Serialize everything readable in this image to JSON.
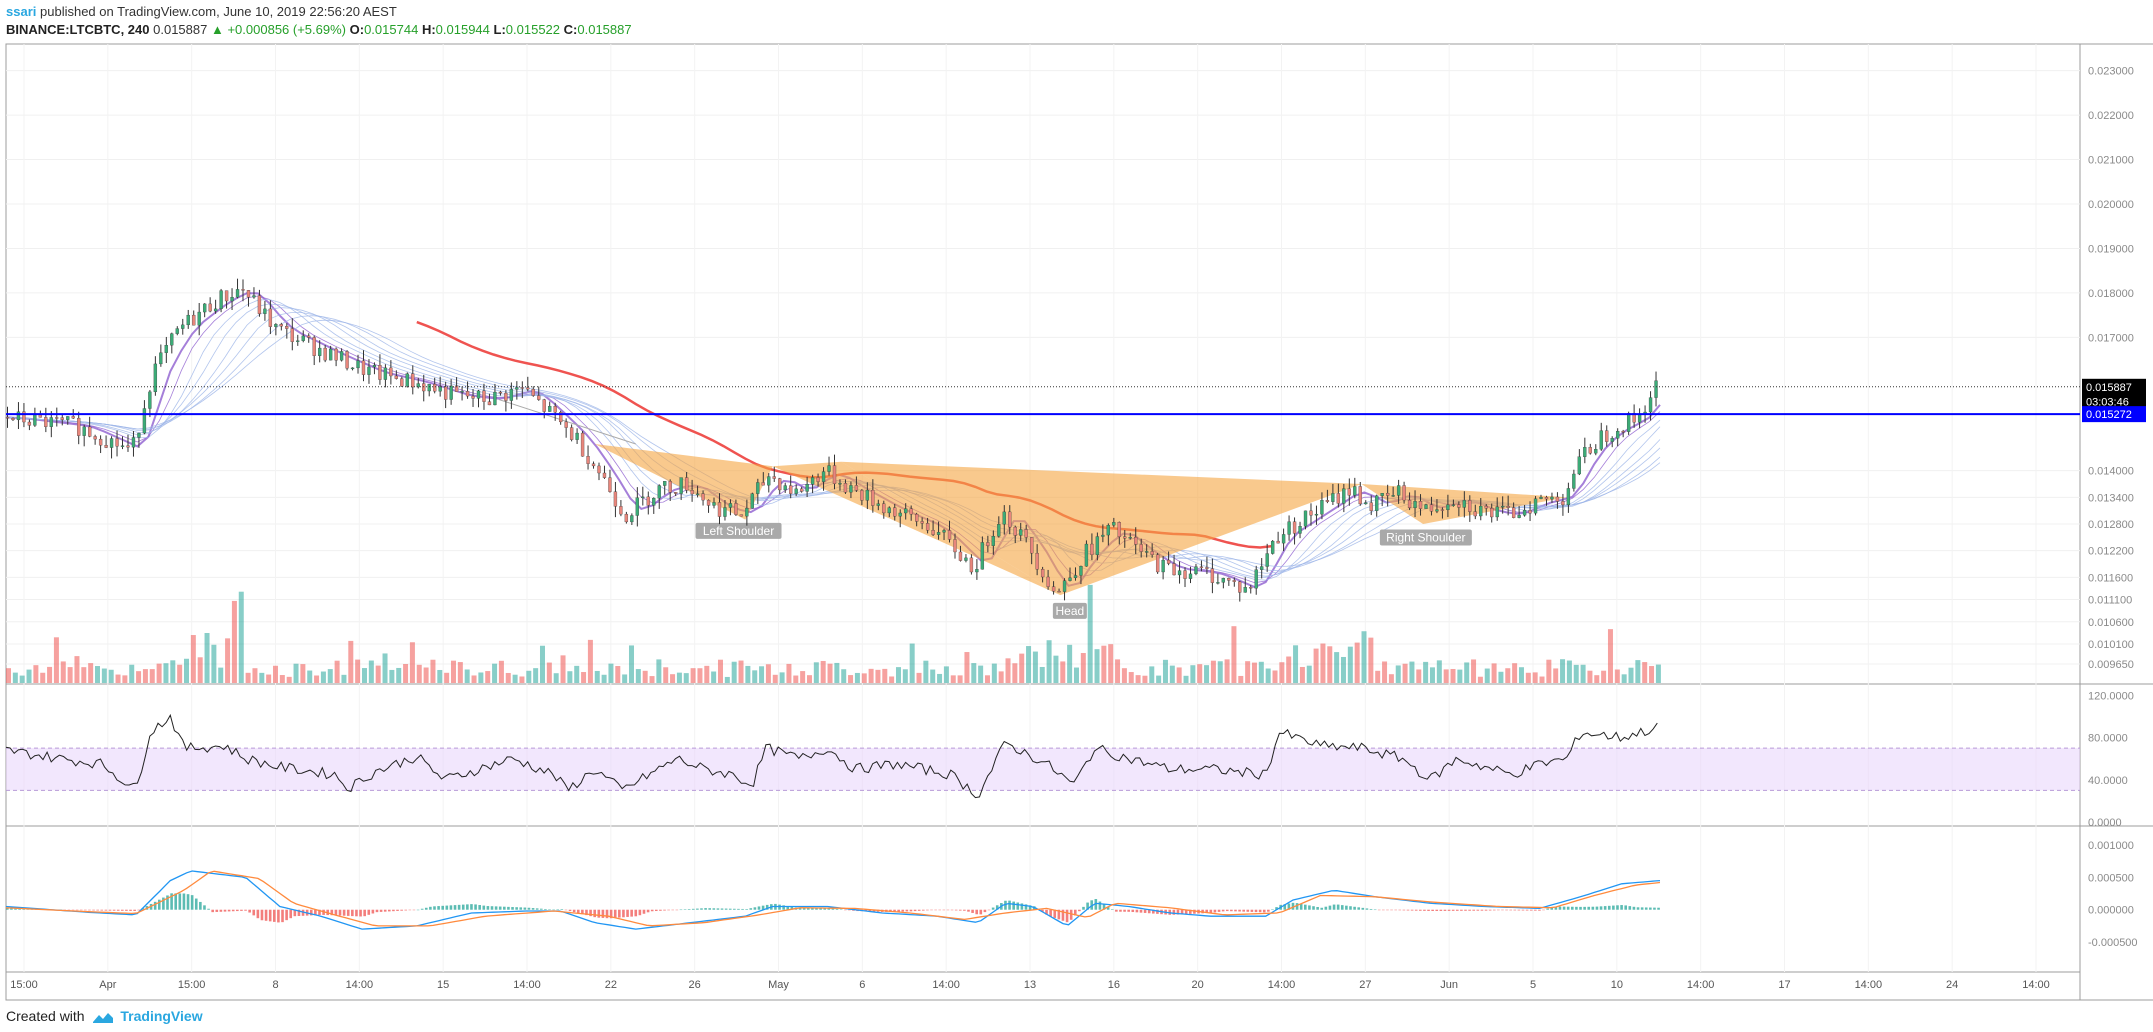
{
  "header": {
    "author": "ssari",
    "published_text": "published on TradingView.com, June 10, 2019 22:56:20 AEST",
    "symbol": "BINANCE:LTCBTC, 240",
    "last": "0.015887",
    "change": "▲ +0.000856 (+5.69%)",
    "o_label": "O:",
    "o_value": "0.015744",
    "h_label": "H:",
    "h_value": "0.015944",
    "l_label": "L:",
    "l_value": "0.015522",
    "c_label": "C:",
    "c_value": "0.015887"
  },
  "footer": {
    "created_with": "Created with",
    "brand": "TradingView"
  },
  "colors": {
    "up": "#26a69a",
    "down": "#ef5350",
    "pattern": "#f5a541",
    "resistance": "#0000ff",
    "rsi_band": "#e7d3fb",
    "macd": "#2196f3",
    "signal": "#ff8a3d",
    "ma_fast": "#8e5fd0",
    "ma_slow": "#ef5350"
  },
  "chart_data": {
    "type": "candlestick",
    "price_axis": {
      "ticks": [
        "0.023000",
        "0.022000",
        "0.021000",
        "0.020000",
        "0.019000",
        "0.018000",
        "0.017000",
        "0.014000",
        "0.013400",
        "0.012800",
        "0.012200",
        "0.011600",
        "0.011100",
        "0.010600",
        "0.010100",
        "0.009650"
      ],
      "range": [
        0.0092,
        0.0236
      ]
    },
    "price_labels": [
      {
        "text": "0.015887",
        "value": 0.015887,
        "style": "last"
      },
      {
        "text": "03:03:46",
        "value": 0.01556,
        "style": "timer"
      },
      {
        "text": "0.015272",
        "value": 0.015272,
        "style": "level"
      }
    ],
    "time_axis": [
      "15:00",
      "Apr",
      "15:00",
      "8",
      "14:00",
      "15",
      "14:00",
      "22",
      "26",
      "May",
      "6",
      "14:00",
      "13",
      "16",
      "20",
      "14:00",
      "27",
      "Jun",
      "5",
      "10",
      "14:00",
      "17",
      "14:00",
      "24",
      "14:00"
    ],
    "resistance_level": 0.015272,
    "annotations": [
      "Left Shoulder",
      "Head",
      "Right Shoulder"
    ],
    "close_path": [
      [
        0,
        0.0152
      ],
      [
        55,
        0.015
      ],
      [
        95,
        0.01445
      ],
      [
        110,
        0.0162
      ],
      [
        130,
        0.0172
      ],
      [
        155,
        0.0178
      ],
      [
        175,
        0.0181
      ],
      [
        200,
        0.0172
      ],
      [
        240,
        0.0166
      ],
      [
        270,
        0.0162
      ],
      [
        300,
        0.016
      ],
      [
        330,
        0.0157
      ],
      [
        355,
        0.0156
      ],
      [
        380,
        0.01585
      ],
      [
        400,
        0.0153
      ],
      [
        420,
        0.0147
      ],
      [
        440,
        0.0138
      ],
      [
        455,
        0.013
      ],
      [
        480,
        0.0136
      ],
      [
        500,
        0.0137
      ],
      [
        520,
        0.0132
      ],
      [
        540,
        0.013
      ],
      [
        560,
        0.0139
      ],
      [
        580,
        0.0135
      ],
      [
        600,
        0.014
      ],
      [
        620,
        0.0136
      ],
      [
        650,
        0.0131
      ],
      [
        680,
        0.0127
      ],
      [
        710,
        0.0118
      ],
      [
        730,
        0.0131
      ],
      [
        750,
        0.0123
      ],
      [
        770,
        0.0112
      ],
      [
        790,
        0.0121
      ],
      [
        810,
        0.0127
      ],
      [
        830,
        0.0122
      ],
      [
        850,
        0.0118
      ],
      [
        880,
        0.0117
      ],
      [
        910,
        0.0113
      ],
      [
        930,
        0.0125
      ],
      [
        960,
        0.0131
      ],
      [
        985,
        0.0136
      ],
      [
        1000,
        0.0132
      ],
      [
        1020,
        0.0135
      ],
      [
        1040,
        0.0131
      ],
      [
        1060,
        0.0134
      ],
      [
        1080,
        0.0131
      ],
      [
        1100,
        0.013
      ],
      [
        1120,
        0.0133
      ],
      [
        1140,
        0.0134
      ],
      [
        1150,
        0.0141
      ],
      [
        1165,
        0.0147
      ],
      [
        1180,
        0.015
      ],
      [
        1195,
        0.0152
      ],
      [
        1208,
        0.0159
      ]
    ],
    "rsi": {
      "ticks": [
        "120.0000",
        "80.0000",
        "40.0000",
        "0.0000"
      ],
      "band": [
        30,
        70
      ],
      "path": [
        [
          0,
          68
        ],
        [
          40,
          60
        ],
        [
          70,
          55
        ],
        [
          95,
          30
        ],
        [
          105,
          85
        ],
        [
          120,
          100
        ],
        [
          130,
          70
        ],
        [
          160,
          72
        ],
        [
          175,
          60
        ],
        [
          200,
          52
        ],
        [
          240,
          45
        ],
        [
          250,
          32
        ],
        [
          270,
          48
        ],
        [
          300,
          62
        ],
        [
          320,
          40
        ],
        [
          340,
          48
        ],
        [
          370,
          60
        ],
        [
          400,
          45
        ],
        [
          410,
          30
        ],
        [
          430,
          50
        ],
        [
          450,
          30
        ],
        [
          470,
          45
        ],
        [
          490,
          60
        ],
        [
          510,
          50
        ],
        [
          530,
          45
        ],
        [
          545,
          35
        ],
        [
          555,
          70
        ],
        [
          580,
          60
        ],
        [
          600,
          70
        ],
        [
          620,
          50
        ],
        [
          650,
          55
        ],
        [
          690,
          45
        ],
        [
          710,
          25
        ],
        [
          730,
          75
        ],
        [
          760,
          55
        ],
        [
          780,
          35
        ],
        [
          795,
          70
        ],
        [
          820,
          60
        ],
        [
          850,
          50
        ],
        [
          880,
          50
        ],
        [
          920,
          45
        ],
        [
          930,
          85
        ],
        [
          960,
          72
        ],
        [
          990,
          70
        ],
        [
          1020,
          60
        ],
        [
          1040,
          40
        ],
        [
          1060,
          60
        ],
        [
          1080,
          52
        ],
        [
          1100,
          45
        ],
        [
          1120,
          55
        ],
        [
          1140,
          60
        ],
        [
          1150,
          85
        ],
        [
          1180,
          80
        ],
        [
          1208,
          90
        ]
      ]
    },
    "macd": {
      "ticks": [
        "0.001000",
        "0.000500",
        "0.000000",
        "-0.000500"
      ],
      "macd_path": [
        [
          0,
          5e-05
        ],
        [
          60,
          -4e-05
        ],
        [
          95,
          -8e-05
        ],
        [
          120,
          0.00045
        ],
        [
          135,
          0.0006
        ],
        [
          175,
          0.0005
        ],
        [
          200,
          5e-05
        ],
        [
          230,
          -0.0001
        ],
        [
          260,
          -0.0003
        ],
        [
          300,
          -0.00025
        ],
        [
          340,
          -5e-05
        ],
        [
          380,
          -2e-05
        ],
        [
          405,
          -2e-05
        ],
        [
          430,
          -0.0002
        ],
        [
          460,
          -0.0003
        ],
        [
          500,
          -0.0002
        ],
        [
          540,
          -0.0001
        ],
        [
          560,
          5e-05
        ],
        [
          600,
          5e-05
        ],
        [
          640,
          -5e-05
        ],
        [
          680,
          -0.0001
        ],
        [
          710,
          -0.0002
        ],
        [
          730,
          0.0001
        ],
        [
          750,
          5e-05
        ],
        [
          775,
          -0.00025
        ],
        [
          795,
          0.0001
        ],
        [
          820,
          5e-05
        ],
        [
          850,
          -5e-05
        ],
        [
          880,
          -0.0001
        ],
        [
          920,
          -0.0001
        ],
        [
          940,
          0.00015
        ],
        [
          970,
          0.0003
        ],
        [
          1000,
          0.0002
        ],
        [
          1040,
          0.0001
        ],
        [
          1080,
          5e-05
        ],
        [
          1120,
          2e-05
        ],
        [
          1150,
          0.0002
        ],
        [
          1180,
          0.0004
        ],
        [
          1208,
          0.00045
        ]
      ],
      "signal_path": [
        [
          0,
          3e-05
        ],
        [
          60,
          -3e-05
        ],
        [
          95,
          -6e-05
        ],
        [
          130,
          0.0003
        ],
        [
          150,
          0.0006
        ],
        [
          185,
          0.00048
        ],
        [
          210,
          0.0001
        ],
        [
          240,
          -8e-05
        ],
        [
          270,
          -0.00025
        ],
        [
          310,
          -0.00025
        ],
        [
          350,
          -0.0001
        ],
        [
          400,
          -2e-05
        ],
        [
          440,
          -0.0001
        ],
        [
          470,
          -0.00025
        ],
        [
          510,
          -0.0002
        ],
        [
          550,
          -8e-05
        ],
        [
          580,
          3e-05
        ],
        [
          620,
          2e-05
        ],
        [
          660,
          -5e-05
        ],
        [
          700,
          -0.00015
        ],
        [
          730,
          -5e-05
        ],
        [
          760,
          2e-05
        ],
        [
          790,
          -0.00012
        ],
        [
          810,
          0.0001
        ],
        [
          850,
          3e-05
        ],
        [
          890,
          -8e-05
        ],
        [
          930,
          -5e-05
        ],
        [
          960,
          0.00022
        ],
        [
          1000,
          0.0002
        ],
        [
          1040,
          0.00012
        ],
        [
          1090,
          5e-05
        ],
        [
          1130,
          3e-05
        ],
        [
          1160,
          0.00022
        ],
        [
          1190,
          0.00038
        ],
        [
          1208,
          0.00042
        ]
      ]
    }
  }
}
